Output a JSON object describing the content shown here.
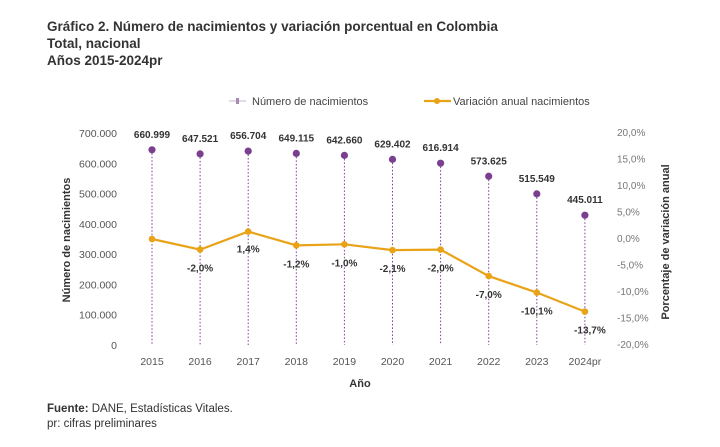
{
  "title": [
    "Gráfico 2. Número de nacimientos y variación porcentual en Colombia",
    "Total, nacional",
    "Años 2015-2024pr"
  ],
  "source": {
    "label": "Fuente:",
    "text": " DANE, Estadísticas Vitales.",
    "note": "pr: cifras preliminares"
  },
  "chart_data": {
    "type": "bar+line",
    "categories": [
      "2015",
      "2016",
      "2017",
      "2018",
      "2019",
      "2020",
      "2021",
      "2022",
      "2023",
      "2024pr"
    ],
    "series": [
      {
        "name": "Número de nacimientos",
        "type": "lollipop",
        "axis": "left",
        "color": "#7B3F8F",
        "values": [
          660999,
          647521,
          656704,
          649115,
          642660,
          629402,
          616914,
          573625,
          515549,
          445011
        ],
        "labels": [
          "660.999",
          "647.521",
          "656.704",
          "649.115",
          "642.660",
          "629.402",
          "616.914",
          "573.625",
          "515.549",
          "445.011"
        ]
      },
      {
        "name": "Variación anual nacimientos",
        "type": "line",
        "axis": "right",
        "color": "#E8A317",
        "values": [
          0,
          -2.0,
          1.4,
          -1.2,
          -1.0,
          -2.1,
          -2.0,
          -7.0,
          -10.1,
          -13.7
        ],
        "labels": [
          "",
          "-2,0%",
          "1,4%",
          "-1,2%",
          "-1,0%",
          "-2,1%",
          "-2,0%",
          "-7,0%",
          "-10,1%",
          "-13,7%"
        ]
      }
    ],
    "xlabel": "Año",
    "ylabel": "Número de nacimientos",
    "y2label": "Porcentaje de variación anual",
    "ylim": [
      0,
      700000
    ],
    "y2lim": [
      -20,
      20
    ],
    "yticks": [
      "700.000",
      "600.000",
      "500.000",
      "400.000",
      "300.000",
      "200.000",
      "100.000",
      "0"
    ],
    "y2ticks": [
      "20,0%",
      "15,0%",
      "10,0%",
      "5,0%",
      "0,0%",
      "-5,0%",
      "-10,0%",
      "-15,0%",
      "-20,0%"
    ],
    "grid": false,
    "legend": "top"
  }
}
